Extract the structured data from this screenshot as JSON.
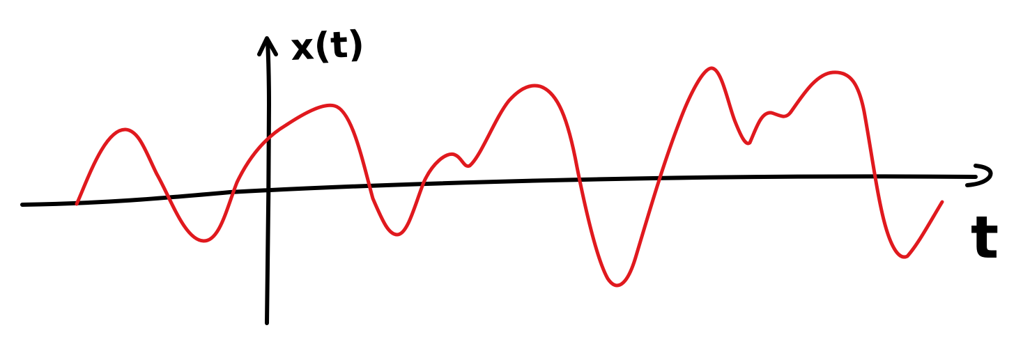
{
  "labels": {
    "y_axis": "x(t)",
    "x_axis": "t"
  },
  "colors": {
    "background": "#ffffff",
    "axis": "#000000",
    "signal": "#e0191e"
  }
}
